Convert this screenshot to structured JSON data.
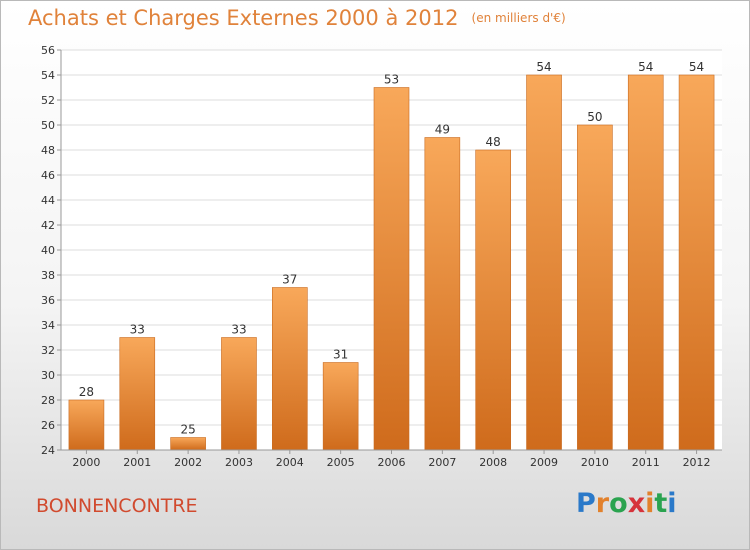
{
  "title": "Achats et Charges Externes 2000 à 2012",
  "unit_note": "(en milliers d'€)",
  "place_name": "BONNENCONTRE",
  "logo": {
    "text": "Proxiti",
    "letters": [
      "P",
      "r",
      "o",
      "x",
      "i",
      "t",
      "i"
    ],
    "colors": [
      "#2a79c9",
      "#e2812c",
      "#2aa34f",
      "#d6333b",
      "#e2812c",
      "#2aa34f",
      "#2a79c9"
    ]
  },
  "colors": {
    "bar_top": "#f8a85a",
    "bar_bottom": "#cf6b1c",
    "title": "#e0823a",
    "place": "#d14a2e"
  },
  "chart_data": {
    "type": "bar",
    "title": "Achats et Charges Externes 2000 à 2012",
    "subtitle": "(en milliers d'€)",
    "xlabel": "",
    "ylabel": "",
    "categories": [
      "2000",
      "2001",
      "2002",
      "2003",
      "2004",
      "2005",
      "2006",
      "2007",
      "2008",
      "2009",
      "2010",
      "2011",
      "2012"
    ],
    "values": [
      28,
      33,
      25,
      33,
      37,
      31,
      53,
      49,
      48,
      54,
      50,
      54,
      54
    ],
    "ylim": [
      24,
      56
    ],
    "yticks": [
      24,
      26,
      28,
      30,
      32,
      34,
      36,
      38,
      40,
      42,
      44,
      46,
      48,
      50,
      52,
      54,
      56
    ],
    "grid": true
  }
}
